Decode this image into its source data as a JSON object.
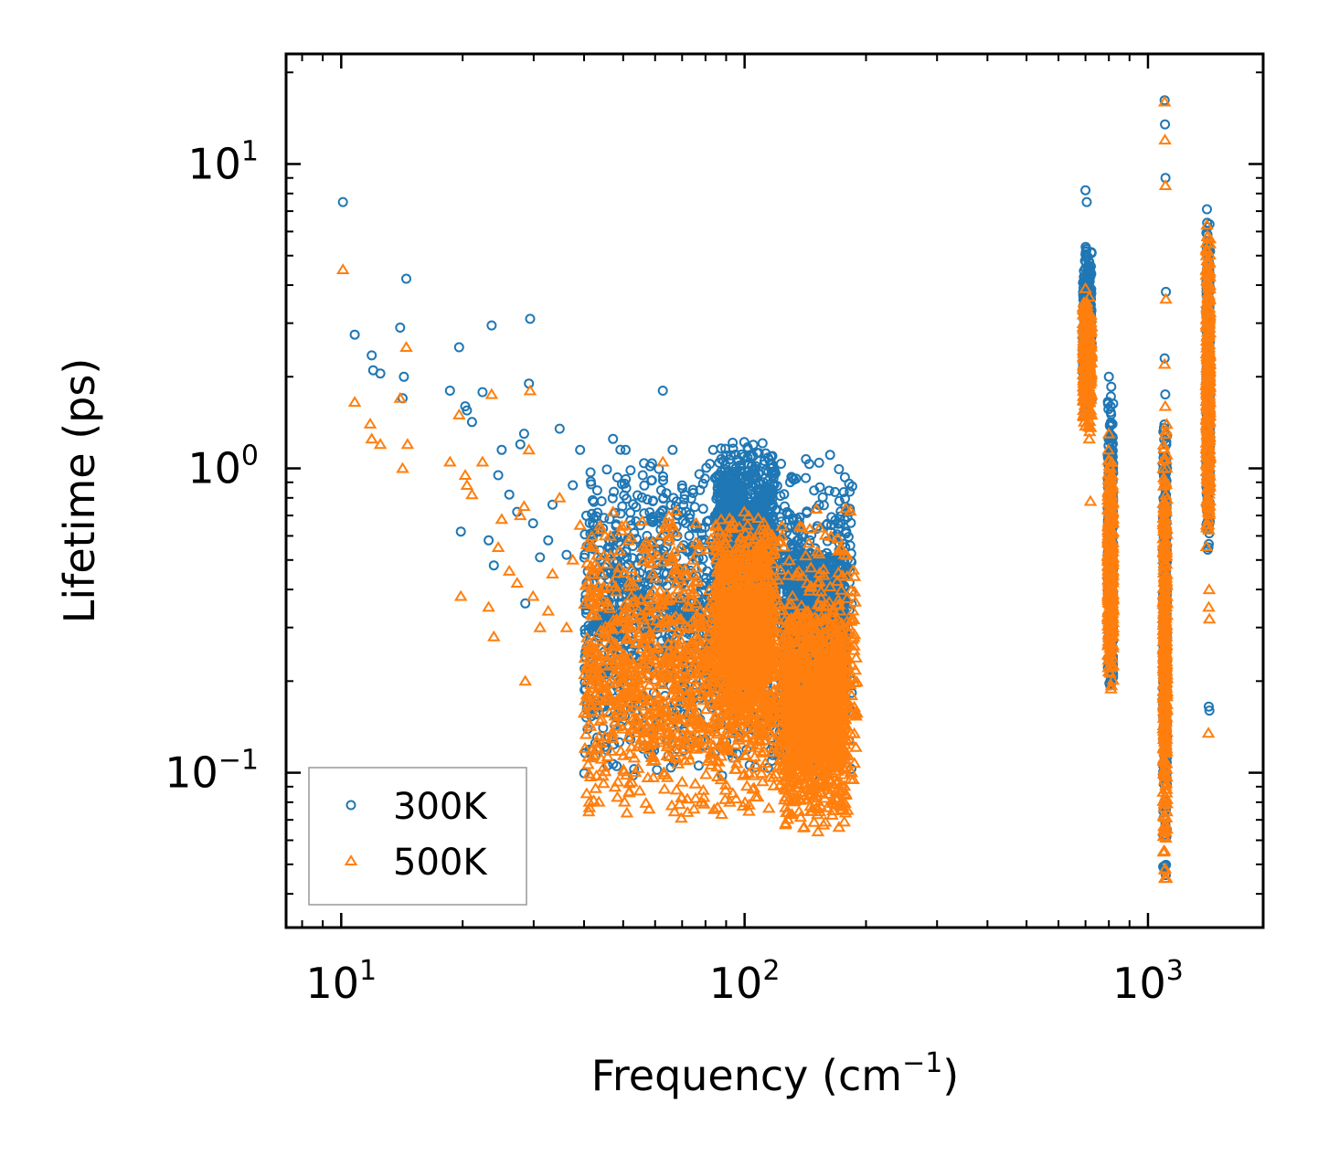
{
  "chart_data": {
    "type": "scatter",
    "xscale": "log",
    "yscale": "log",
    "xlim": [
      7.3,
      1930
    ],
    "ylim": [
      0.031,
      23
    ],
    "xlabel": "Frequency (cm",
    "xlabel_sup": "−1",
    "xlabel_end": ")",
    "ylabel": "Lifetime (ps)",
    "legend_position": "lower-left",
    "x_ticks": [
      {
        "value": 10,
        "base": "10",
        "exp": "1"
      },
      {
        "value": 100,
        "base": "10",
        "exp": "2"
      },
      {
        "value": 1000,
        "base": "10",
        "exp": "3"
      }
    ],
    "y_ticks": [
      {
        "value": 0.1,
        "base": "10",
        "exp": "−1"
      },
      {
        "value": 1,
        "base": "10",
        "exp": "0"
      },
      {
        "value": 10,
        "base": "10",
        "exp": "1"
      }
    ],
    "series": [
      {
        "name": "300K",
        "marker": "circle",
        "color": "#1f77b4",
        "points": [
          [
            10.1,
            7.5
          ],
          [
            10.8,
            2.75
          ],
          [
            11.9,
            2.35
          ],
          [
            12.0,
            2.1
          ],
          [
            12.5,
            2.05
          ],
          [
            14.0,
            2.9
          ],
          [
            14.3,
            2.0
          ],
          [
            14.5,
            4.2
          ],
          [
            14.2,
            1.7
          ],
          [
            18.6,
            1.8
          ],
          [
            19.6,
            2.5
          ],
          [
            19.8,
            0.62
          ],
          [
            20.3,
            1.6
          ],
          [
            20.5,
            1.55
          ],
          [
            21.1,
            1.42
          ],
          [
            22.4,
            1.78
          ],
          [
            23.2,
            0.58
          ],
          [
            23.6,
            2.95
          ],
          [
            23.9,
            0.48
          ],
          [
            24.5,
            0.95
          ],
          [
            25.0,
            1.15
          ],
          [
            26.1,
            0.82
          ],
          [
            27.3,
            0.72
          ],
          [
            27.8,
            1.2
          ],
          [
            28.4,
            1.3
          ],
          [
            29.2,
            1.9
          ],
          [
            29.4,
            3.1
          ],
          [
            28.6,
            0.36
          ],
          [
            29.9,
            0.66
          ],
          [
            31.1,
            0.51
          ],
          [
            32.6,
            0.58
          ],
          [
            33.4,
            0.76
          ],
          [
            34.8,
            1.35
          ],
          [
            36.2,
            0.52
          ],
          [
            37.5,
            0.88
          ],
          [
            39.1,
            1.15
          ],
          [
            40.6,
            0.42
          ],
          [
            41.5,
            0.97
          ],
          [
            43.0,
            0.62
          ],
          [
            44.2,
            0.78
          ],
          [
            45.9,
            0.55
          ],
          [
            47.2,
            1.25
          ],
          [
            48.8,
            0.44
          ],
          [
            50.7,
            1.15
          ],
          [
            52.4,
            0.65
          ],
          [
            54.1,
            0.33
          ],
          [
            55.9,
            0.95
          ],
          [
            57.3,
            0.6
          ],
          [
            59.2,
            0.78
          ],
          [
            61.0,
            0.52
          ],
          [
            62.7,
            1.8
          ],
          [
            64.1,
            0.45
          ],
          [
            66.3,
            1.15
          ],
          [
            68.4,
            0.7
          ],
          [
            70.2,
            0.42
          ],
          [
            72.9,
            0.6
          ],
          [
            74.5,
            0.85
          ],
          [
            76.0,
            0.5
          ],
          [
            79.8,
            0.64
          ],
          [
            84.0,
            0.45
          ],
          [
            99.8,
            1.22
          ],
          [
            112.6,
            0.82
          ],
          [
            114.1,
            0.62
          ],
          [
            120.4,
            0.5
          ],
          [
            133.0,
            0.52
          ],
          [
            145.0,
            0.58
          ],
          [
            158.0,
            0.48
          ],
          [
            173.0,
            0.32
          ],
          [
            186.0,
            0.155
          ],
          [
            700,
            8.2
          ],
          [
            705,
            7.5
          ],
          [
            710,
            3.8
          ],
          [
            715,
            2.4
          ],
          [
            720,
            1.7
          ],
          [
            800,
            2.0
          ],
          [
            808,
            1.6
          ],
          [
            815,
            1.1
          ],
          [
            1100,
            16.2
          ],
          [
            1102,
            13.5
          ],
          [
            1105,
            9.0
          ],
          [
            1108,
            3.8
          ],
          [
            1100,
            2.3
          ],
          [
            1104,
            1.75
          ],
          [
            1106,
            0.16
          ],
          [
            1100,
            0.07
          ],
          [
            1400,
            7.1
          ],
          [
            1405,
            6.2
          ],
          [
            1410,
            5.0
          ],
          [
            1415,
            0.165
          ],
          [
            1420,
            0.16
          ],
          [
            1412,
            0.55
          ]
        ],
        "clusters": [
          {
            "x": [
              40,
              185
            ],
            "y": [
              0.09,
              1.22
            ],
            "n": 1600
          },
          {
            "x": [
              85,
              118
            ],
            "y": [
              0.3,
              1.25
            ],
            "n": 900
          },
          {
            "x": [
              125,
              178
            ],
            "y": [
              0.16,
              0.58
            ],
            "n": 900
          },
          {
            "x": [
              690,
              725
            ],
            "y": [
              1.4,
              5.8
            ],
            "n": 350
          },
          {
            "x": [
              795,
              820
            ],
            "y": [
              0.18,
              1.95
            ],
            "n": 350
          },
          {
            "x": [
              1090,
              1115
            ],
            "y": [
              0.042,
              1.7
            ],
            "n": 350
          },
          {
            "x": [
              1395,
              1425
            ],
            "y": [
              0.5,
              6.8
            ],
            "n": 400
          }
        ]
      },
      {
        "name": "500K",
        "marker": "triangle",
        "color": "#ff7f0e",
        "points": [
          [
            10.1,
            4.5
          ],
          [
            10.8,
            1.65
          ],
          [
            11.8,
            1.4
          ],
          [
            11.9,
            1.25
          ],
          [
            12.5,
            1.2
          ],
          [
            14.0,
            1.7
          ],
          [
            14.2,
            1.0
          ],
          [
            14.5,
            2.5
          ],
          [
            14.6,
            1.2
          ],
          [
            18.6,
            1.05
          ],
          [
            19.6,
            1.5
          ],
          [
            19.8,
            0.38
          ],
          [
            20.3,
            0.95
          ],
          [
            20.5,
            0.88
          ],
          [
            21.1,
            0.82
          ],
          [
            22.4,
            1.05
          ],
          [
            23.2,
            0.35
          ],
          [
            23.6,
            1.75
          ],
          [
            23.9,
            0.28
          ],
          [
            24.5,
            0.55
          ],
          [
            25.0,
            0.68
          ],
          [
            26.1,
            0.46
          ],
          [
            27.3,
            0.42
          ],
          [
            27.8,
            0.7
          ],
          [
            28.4,
            0.75
          ],
          [
            29.2,
            1.15
          ],
          [
            29.4,
            1.8
          ],
          [
            28.6,
            0.2
          ],
          [
            29.9,
            0.38
          ],
          [
            31.1,
            0.3
          ],
          [
            32.6,
            0.34
          ],
          [
            33.4,
            0.45
          ],
          [
            34.8,
            0.8
          ],
          [
            36.2,
            0.3
          ],
          [
            37.5,
            0.5
          ],
          [
            39.1,
            0.65
          ],
          [
            40.6,
            0.22
          ],
          [
            41.5,
            0.55
          ],
          [
            43.0,
            0.35
          ],
          [
            44.2,
            0.45
          ],
          [
            45.9,
            0.3
          ],
          [
            47.2,
            0.72
          ],
          [
            48.8,
            0.25
          ],
          [
            50.7,
            0.65
          ],
          [
            52.4,
            0.38
          ],
          [
            54.1,
            0.15
          ],
          [
            55.9,
            0.55
          ],
          [
            57.3,
            0.34
          ],
          [
            59.2,
            0.45
          ],
          [
            61.0,
            0.3
          ],
          [
            62.7,
            1.05
          ],
          [
            64.1,
            0.24
          ],
          [
            66.3,
            0.65
          ],
          [
            68.4,
            0.4
          ],
          [
            70.2,
            0.24
          ],
          [
            72.9,
            0.35
          ],
          [
            74.5,
            0.5
          ],
          [
            99.8,
            0.72
          ],
          [
            112.6,
            0.45
          ],
          [
            114.1,
            0.35
          ],
          [
            120.4,
            0.28
          ],
          [
            145.0,
            0.32
          ],
          [
            186.0,
            0.095
          ],
          [
            140,
            0.066
          ],
          [
            152,
            0.064
          ],
          [
            58,
            0.076
          ],
          [
            66,
            0.078
          ],
          [
            700,
            3.9
          ],
          [
            705,
            3.5
          ],
          [
            710,
            1.9
          ],
          [
            715,
            1.25
          ],
          [
            720,
            0.78
          ],
          [
            800,
            1.3
          ],
          [
            808,
            1.0
          ],
          [
            815,
            0.95
          ],
          [
            1100,
            16.0
          ],
          [
            1102,
            12.0
          ],
          [
            1105,
            8.5
          ],
          [
            1108,
            3.6
          ],
          [
            1100,
            2.2
          ],
          [
            1104,
            1.6
          ],
          [
            1106,
            0.14
          ],
          [
            1100,
            0.045
          ],
          [
            1400,
            6.3
          ],
          [
            1405,
            5.8
          ],
          [
            1410,
            4.8
          ],
          [
            1415,
            0.35
          ],
          [
            1420,
            0.32
          ],
          [
            1412,
            0.135
          ],
          [
            1418,
            0.4
          ]
        ],
        "clusters": [
          {
            "x": [
              40,
              190
            ],
            "y": [
              0.065,
              0.75
            ],
            "n": 1600
          },
          {
            "x": [
              85,
              118
            ],
            "y": [
              0.12,
              0.75
            ],
            "n": 900
          },
          {
            "x": [
              125,
              178
            ],
            "y": [
              0.065,
              0.35
            ],
            "n": 900
          },
          {
            "x": [
              690,
              725
            ],
            "y": [
              1.3,
              3.8
            ],
            "n": 350
          },
          {
            "x": [
              795,
              820
            ],
            "y": [
              0.18,
              1.2
            ],
            "n": 350
          },
          {
            "x": [
              1090,
              1115
            ],
            "y": [
              0.042,
              1.6
            ],
            "n": 350
          },
          {
            "x": [
              1395,
              1425
            ],
            "y": [
              0.5,
              6.3
            ],
            "n": 400
          }
        ]
      }
    ]
  }
}
